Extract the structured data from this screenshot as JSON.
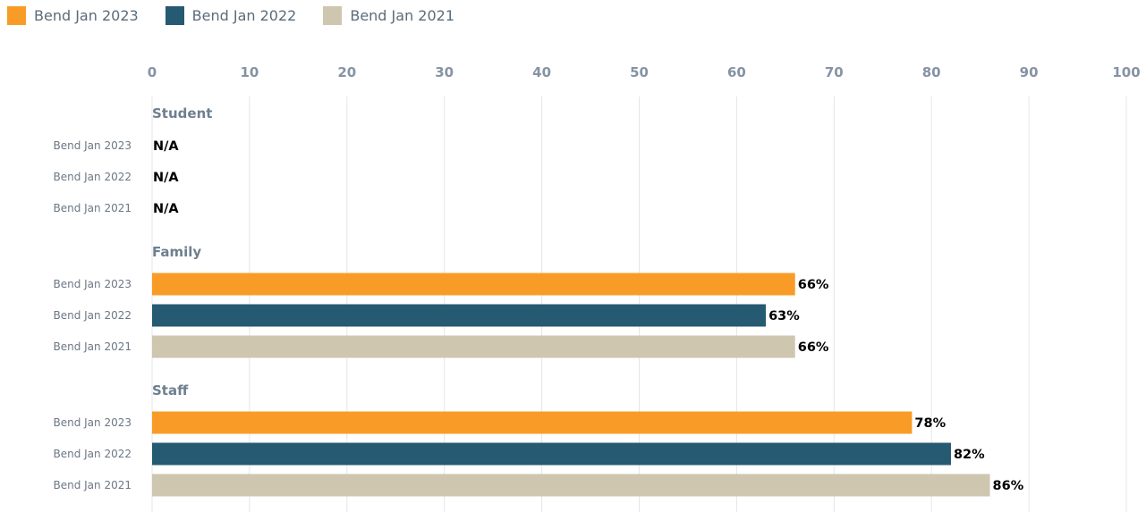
{
  "chart_data": {
    "type": "bar",
    "orientation": "horizontal",
    "xlim": [
      0,
      100
    ],
    "ticks": [
      "0",
      "10",
      "20",
      "30",
      "40",
      "50",
      "60",
      "70",
      "80",
      "90",
      "100"
    ],
    "grid": true,
    "legend_position": "top-left",
    "series": [
      {
        "name": "Bend Jan 2023",
        "color": "#f89c27"
      },
      {
        "name": "Bend Jan 2022",
        "color": "#255a72"
      },
      {
        "name": "Bend Jan 2021",
        "color": "#cfc6b0"
      }
    ],
    "groups": [
      {
        "label": "Student",
        "rows": [
          {
            "series": "Bend Jan 2023",
            "value": null,
            "label": "N/A"
          },
          {
            "series": "Bend Jan 2022",
            "value": null,
            "label": "N/A"
          },
          {
            "series": "Bend Jan 2021",
            "value": null,
            "label": "N/A"
          }
        ]
      },
      {
        "label": "Family",
        "rows": [
          {
            "series": "Bend Jan 2023",
            "value": 66,
            "label": "66%"
          },
          {
            "series": "Bend Jan 2022",
            "value": 63,
            "label": "63%"
          },
          {
            "series": "Bend Jan 2021",
            "value": 66,
            "label": "66%"
          }
        ]
      },
      {
        "label": "Staff",
        "rows": [
          {
            "series": "Bend Jan 2023",
            "value": 78,
            "label": "78%"
          },
          {
            "series": "Bend Jan 2022",
            "value": 82,
            "label": "82%"
          },
          {
            "series": "Bend Jan 2021",
            "value": 86,
            "label": "86%"
          }
        ]
      }
    ]
  }
}
